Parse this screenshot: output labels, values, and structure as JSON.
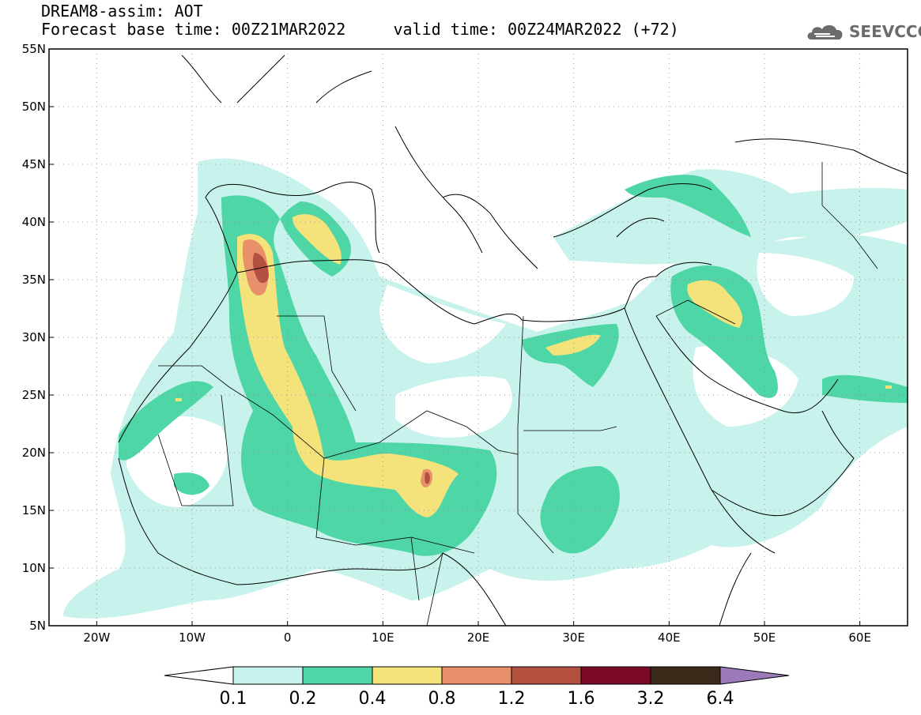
{
  "header": {
    "title_line1": "DREAM8-assim: AOT",
    "title_line2": "Forecast base time: 00Z21MAR2022     valid time: 00Z24MAR2022 (+72)",
    "logo_text": "SEEVCCC"
  },
  "map": {
    "lon_range": [
      -25,
      65
    ],
    "lat_range": [
      5,
      55
    ],
    "lat_ticks": [
      {
        "value": 55,
        "label": "55N"
      },
      {
        "value": 50,
        "label": "50N"
      },
      {
        "value": 45,
        "label": "45N"
      },
      {
        "value": 40,
        "label": "40N"
      },
      {
        "value": 35,
        "label": "35N"
      },
      {
        "value": 30,
        "label": "30N"
      },
      {
        "value": 25,
        "label": "25N"
      },
      {
        "value": 20,
        "label": "20N"
      },
      {
        "value": 15,
        "label": "15N"
      },
      {
        "value": 10,
        "label": "10N"
      },
      {
        "value": 5,
        "label": "5N"
      }
    ],
    "lon_ticks": [
      {
        "value": -20,
        "label": "20W"
      },
      {
        "value": -10,
        "label": "10W"
      },
      {
        "value": 0,
        "label": "0"
      },
      {
        "value": 10,
        "label": "10E"
      },
      {
        "value": 20,
        "label": "20E"
      },
      {
        "value": 30,
        "label": "30E"
      },
      {
        "value": 40,
        "label": "40E"
      },
      {
        "value": 50,
        "label": "50E"
      },
      {
        "value": 60,
        "label": "60E"
      }
    ],
    "grid": "dotted"
  },
  "colorbar": {
    "levels": [
      "0.1",
      "0.2",
      "0.4",
      "0.8",
      "1.2",
      "1.6",
      "3.2",
      "6.4"
    ],
    "colors": [
      "#c8f2ec",
      "#4fd6a6",
      "#f4e27a",
      "#e8906a",
      "#b45040",
      "#7a0a28",
      "#3a2a1a",
      "#9a7ab8"
    ]
  }
}
